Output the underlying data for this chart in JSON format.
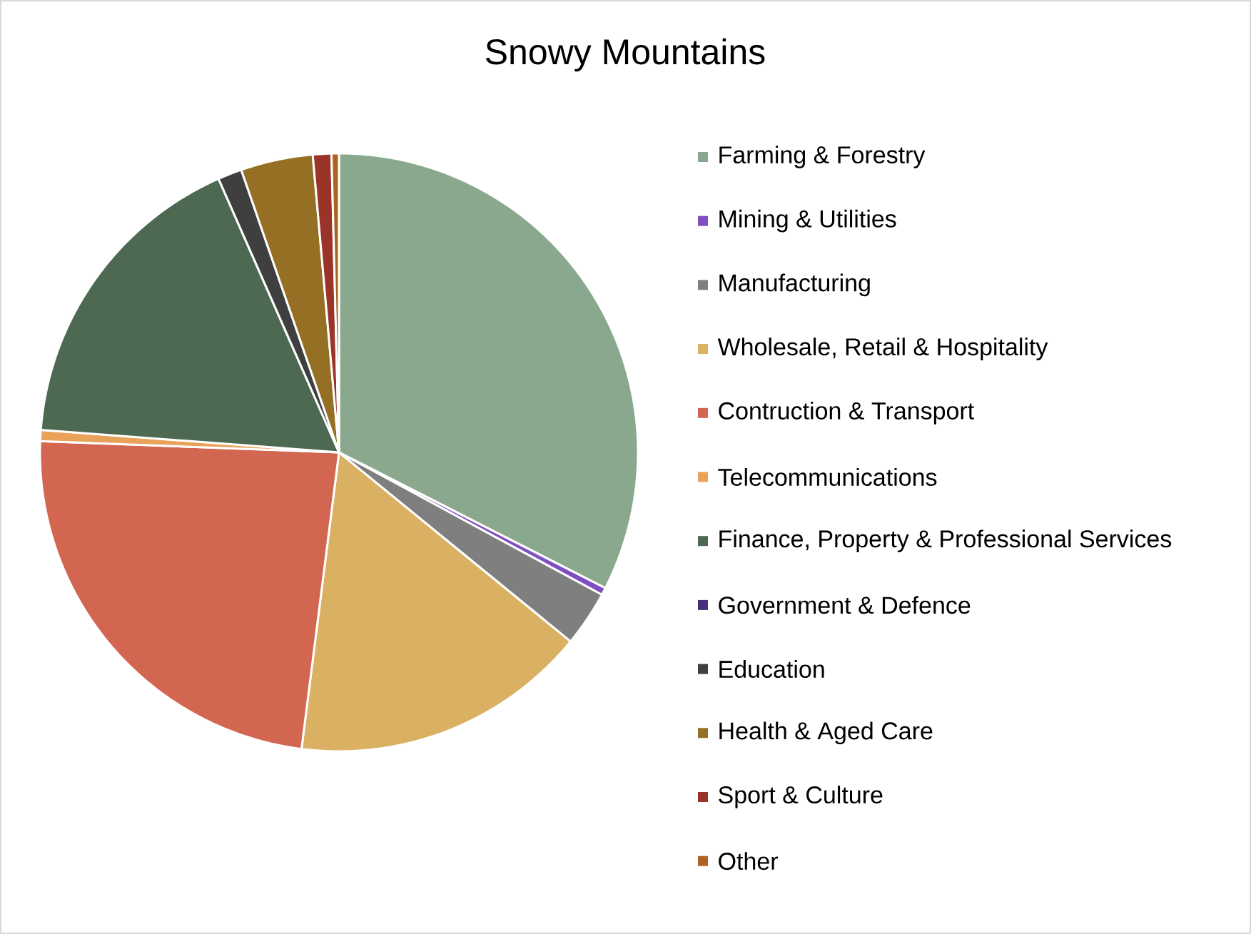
{
  "chart_data": {
    "type": "pie",
    "title": "Snowy Mountains",
    "categories": [
      "Farming & Forestry",
      "Mining & Utilities",
      "Manufacturing",
      "Wholesale, Retail & Hospitality",
      "Contruction & Transport",
      "Telecommunications",
      "Finance, Property & Professional Services",
      "Government & Defence",
      "Education",
      "Health & Aged Care",
      "Sport & Culture",
      "Other"
    ],
    "values": [
      32.5,
      0.4,
      3.0,
      16.1,
      23.6,
      0.6,
      17.2,
      0,
      1.3,
      3.9,
      1.0,
      0.4
    ],
    "colors": [
      "#8aa88e",
      "#7f4fc0",
      "#7f7f7f",
      "#dab162",
      "#d26651",
      "#e8a25a",
      "#4d6952",
      "#4b2e7a",
      "#3f3f3f",
      "#957024",
      "#9a3328",
      "#b06220"
    ],
    "legend": "right"
  }
}
